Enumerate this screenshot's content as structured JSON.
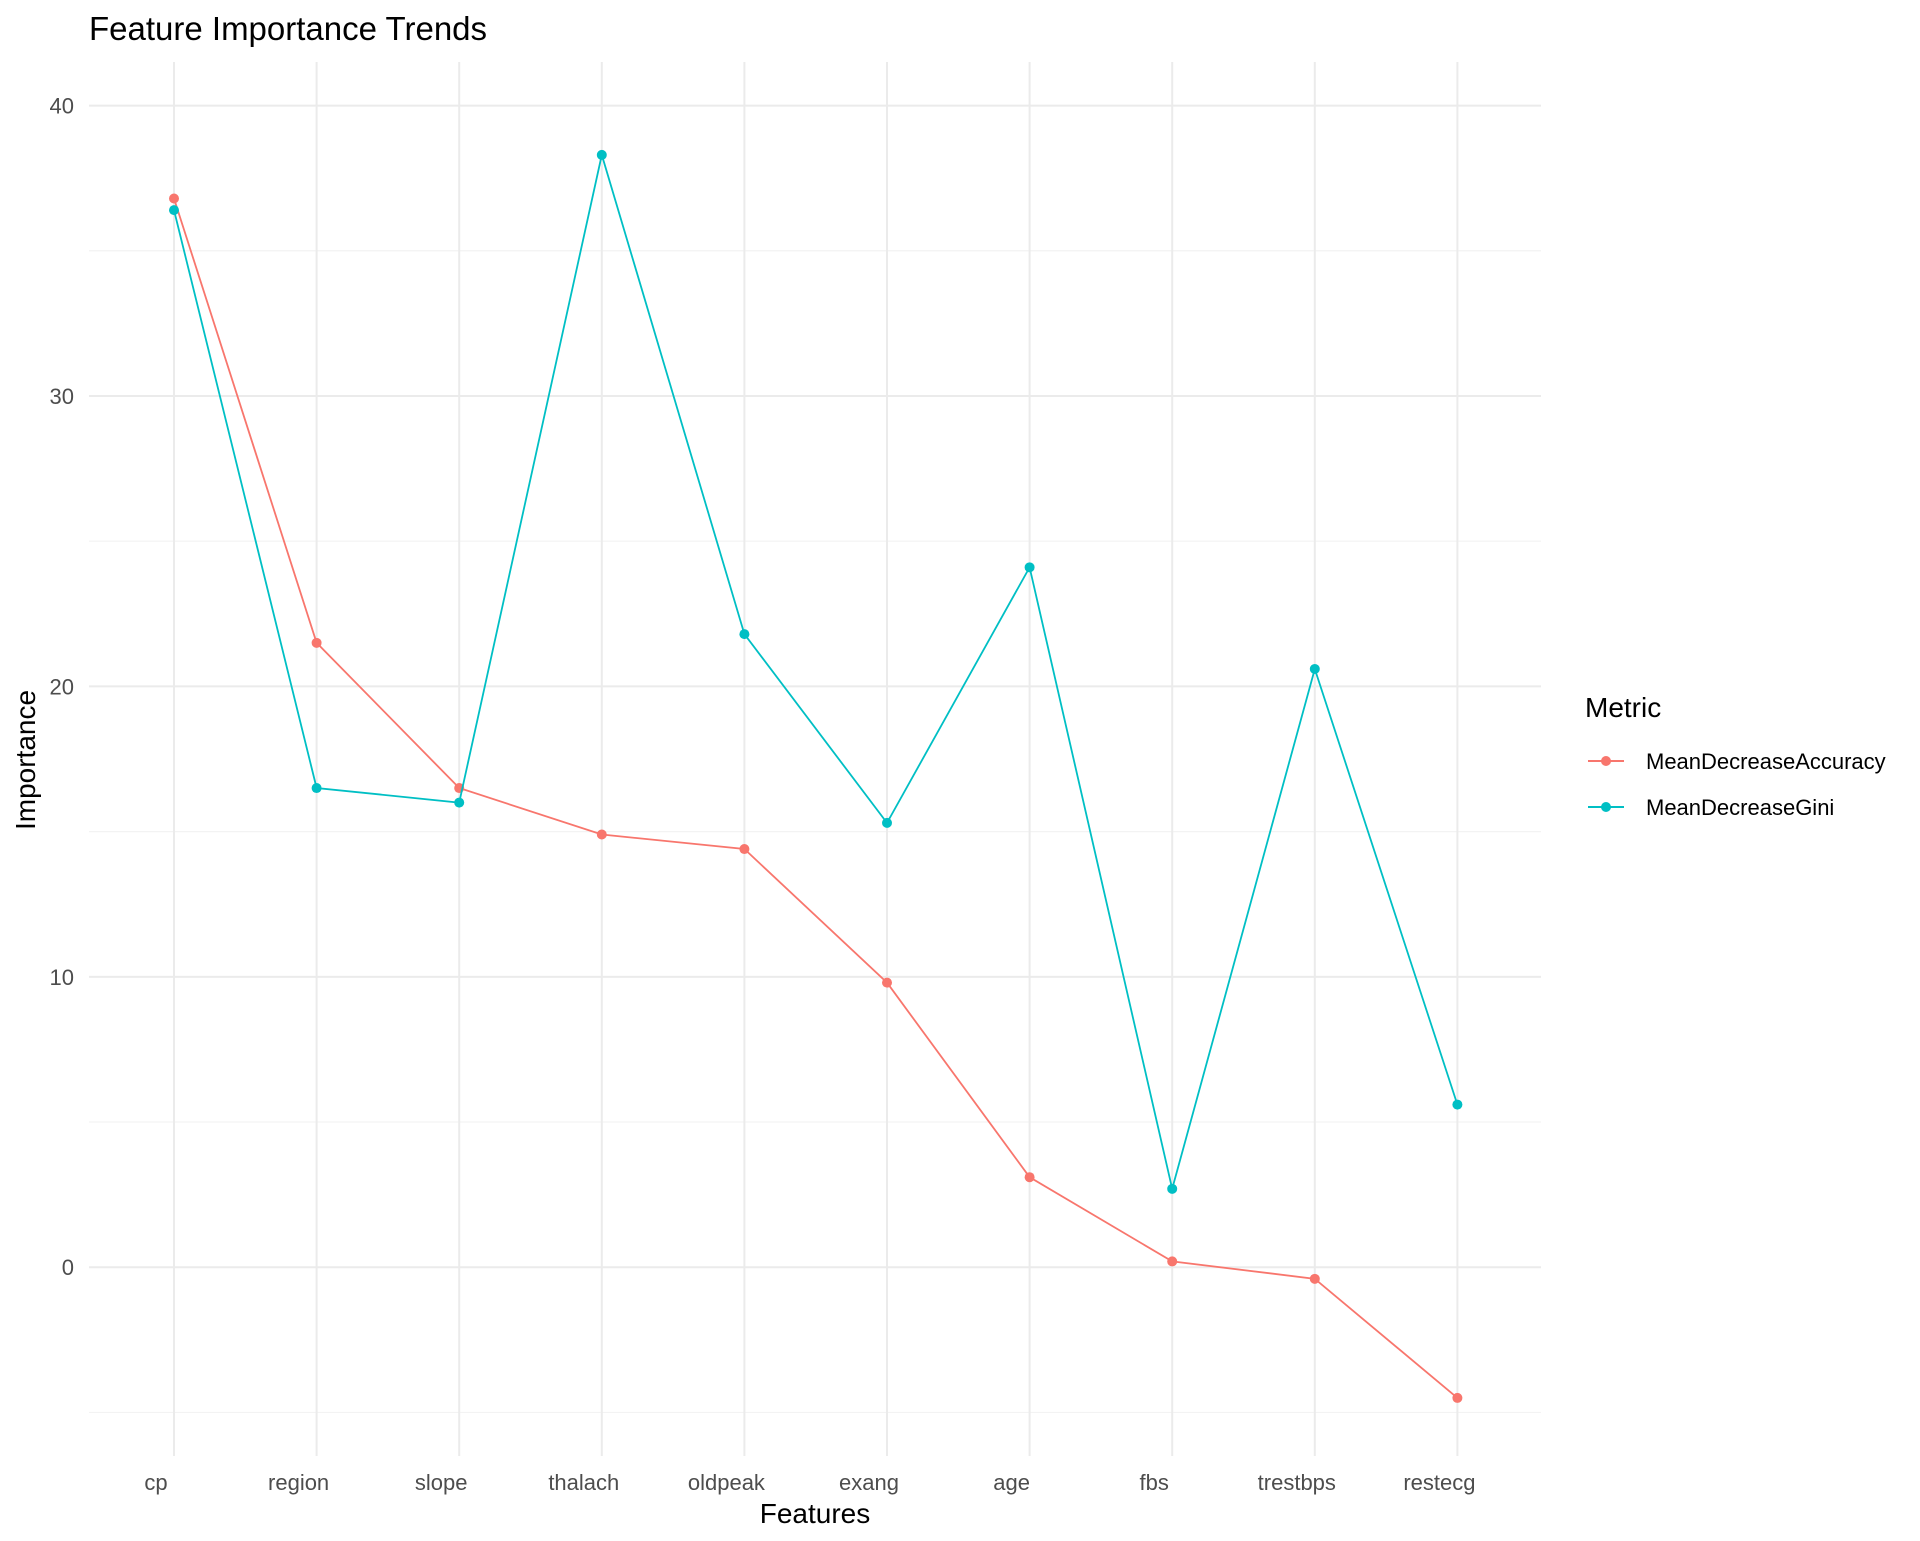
{
  "chart_data": {
    "type": "line",
    "title": "Feature Importance Trends",
    "xlabel": "Features",
    "ylabel": "Importance",
    "categories": [
      "cp",
      "region",
      "slope",
      "thalach",
      "oldpeak",
      "exang",
      "age",
      "fbs",
      "trestbps",
      "restecg"
    ],
    "series": [
      {
        "name": "MeanDecreaseAccuracy",
        "color": "#F8766D",
        "values": [
          36.8,
          21.5,
          16.5,
          14.9,
          14.4,
          9.8,
          3.1,
          0.2,
          -0.4,
          -4.5
        ]
      },
      {
        "name": "MeanDecreaseGini",
        "color": "#00BFC4",
        "values": [
          36.4,
          16.5,
          16.0,
          38.3,
          21.8,
          15.3,
          24.1,
          2.7,
          20.6,
          5.6
        ]
      }
    ],
    "ylim": [
      -6.5,
      41.5
    ],
    "yticks": [
      0,
      10,
      20,
      30,
      40
    ],
    "y_minor_ticks": [
      -5,
      5,
      15,
      25,
      35
    ],
    "grid": true,
    "legend": {
      "title": "Metric",
      "placement": "right"
    }
  }
}
